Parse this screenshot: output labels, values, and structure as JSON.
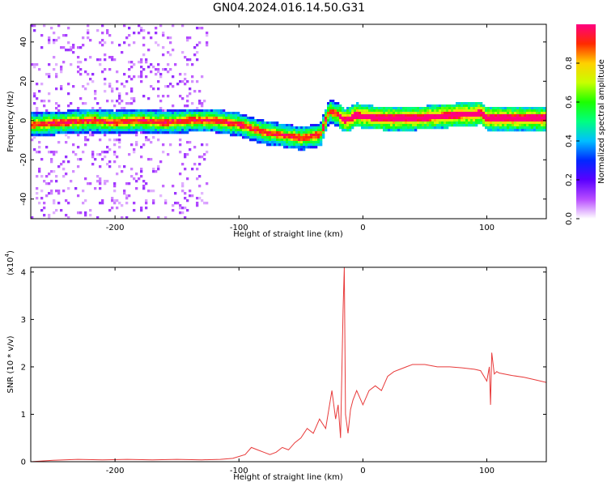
{
  "title": "GN04.2024.016.14.50.G31",
  "colors": {
    "snr_line": "#e83a3a",
    "axis": "#000000",
    "colormap": [
      "#ffffff",
      "#b84dff",
      "#5a00ff",
      "#0028ff",
      "#00bfff",
      "#00ff80",
      "#1cff00",
      "#c8ff00",
      "#ffd000",
      "#ff2a00",
      "#ff0080"
    ]
  },
  "chart_data": [
    {
      "type": "heatmap",
      "xlabel": "Height of straight line (km)",
      "ylabel": "Frequency (Hz)",
      "xlim": [
        -268,
        148
      ],
      "ylim": [
        -50,
        49
      ],
      "xticks": [
        -200,
        -100,
        0,
        100
      ],
      "xtick_labels": [
        "-200",
        "-100",
        "0",
        "100"
      ],
      "yticks": [
        40,
        20,
        0,
        -20,
        -40
      ],
      "ytick_labels": [
        "40",
        "20",
        "0",
        "-20",
        "-40"
      ],
      "ridge": {
        "x": [
          -265,
          -240,
          -220,
          -200,
          -180,
          -160,
          -140,
          -120,
          -110,
          -100,
          -90,
          -80,
          -70,
          -60,
          -50,
          -40,
          -34,
          -30,
          -27,
          -24,
          -20,
          -15,
          -10,
          -5,
          0,
          20,
          40,
          60,
          80,
          90,
          95,
          100,
          105,
          120,
          148
        ],
        "y": [
          -2,
          -1,
          0,
          -1,
          0,
          -1,
          0,
          0,
          -1,
          -2,
          -4,
          -6,
          -7,
          -8,
          -9,
          -8,
          -7,
          0,
          5,
          4,
          3,
          0,
          1,
          3,
          2,
          1,
          1,
          2,
          3,
          3,
          4,
          1,
          1,
          1,
          1
        ]
      },
      "colorbar": {
        "label": "Normalized spectral amplitude",
        "range": [
          0,
          1
        ],
        "ticks": [
          0.0,
          0.2,
          0.4,
          0.6,
          0.8
        ],
        "tick_labels": [
          "0.0",
          "0.2",
          "0.4",
          "0.6",
          "0.8"
        ]
      }
    },
    {
      "type": "line",
      "xlabel": "Height of straight line (km)",
      "ylabel": "SNR (10 * v/v)",
      "y_multiplier": "(x10",
      "y_multiplier_exp": "4",
      "y_multiplier_close": ")",
      "xlim": [
        -268,
        148
      ],
      "ylim": [
        0,
        4.1
      ],
      "xticks": [
        -200,
        -100,
        0,
        100
      ],
      "xtick_labels": [
        "-200",
        "-100",
        "0",
        "100"
      ],
      "yticks": [
        0,
        1,
        2,
        3,
        4
      ],
      "ytick_labels": [
        "0",
        "1",
        "2",
        "3",
        "4"
      ],
      "series": [
        {
          "x": [
            -268,
            -250,
            -230,
            -210,
            -190,
            -170,
            -150,
            -130,
            -115,
            -105,
            -95,
            -90,
            -85,
            -80,
            -75,
            -70,
            -65,
            -60,
            -55,
            -50,
            -45,
            -40,
            -35,
            -30,
            -25,
            -22,
            -20,
            -18,
            -16,
            -15,
            -14,
            -12,
            -10,
            -8,
            -5,
            0,
            5,
            10,
            15,
            20,
            25,
            30,
            35,
            40,
            50,
            60,
            70,
            80,
            90,
            95,
            100,
            102,
            103,
            104,
            106,
            108,
            110,
            120,
            130,
            140,
            148
          ],
          "y": [
            0.0,
            0.03,
            0.05,
            0.04,
            0.05,
            0.04,
            0.05,
            0.04,
            0.05,
            0.07,
            0.15,
            0.3,
            0.25,
            0.2,
            0.15,
            0.2,
            0.3,
            0.25,
            0.4,
            0.5,
            0.7,
            0.6,
            0.9,
            0.7,
            1.5,
            0.9,
            1.2,
            0.5,
            3.2,
            4.1,
            1.0,
            0.6,
            1.1,
            1.3,
            1.5,
            1.2,
            1.5,
            1.6,
            1.5,
            1.8,
            1.9,
            1.95,
            2.0,
            2.05,
            2.05,
            2.0,
            2.0,
            1.98,
            1.95,
            1.92,
            1.7,
            2.0,
            1.2,
            2.3,
            1.85,
            1.9,
            1.87,
            1.82,
            1.78,
            1.72,
            1.67
          ]
        }
      ]
    }
  ]
}
